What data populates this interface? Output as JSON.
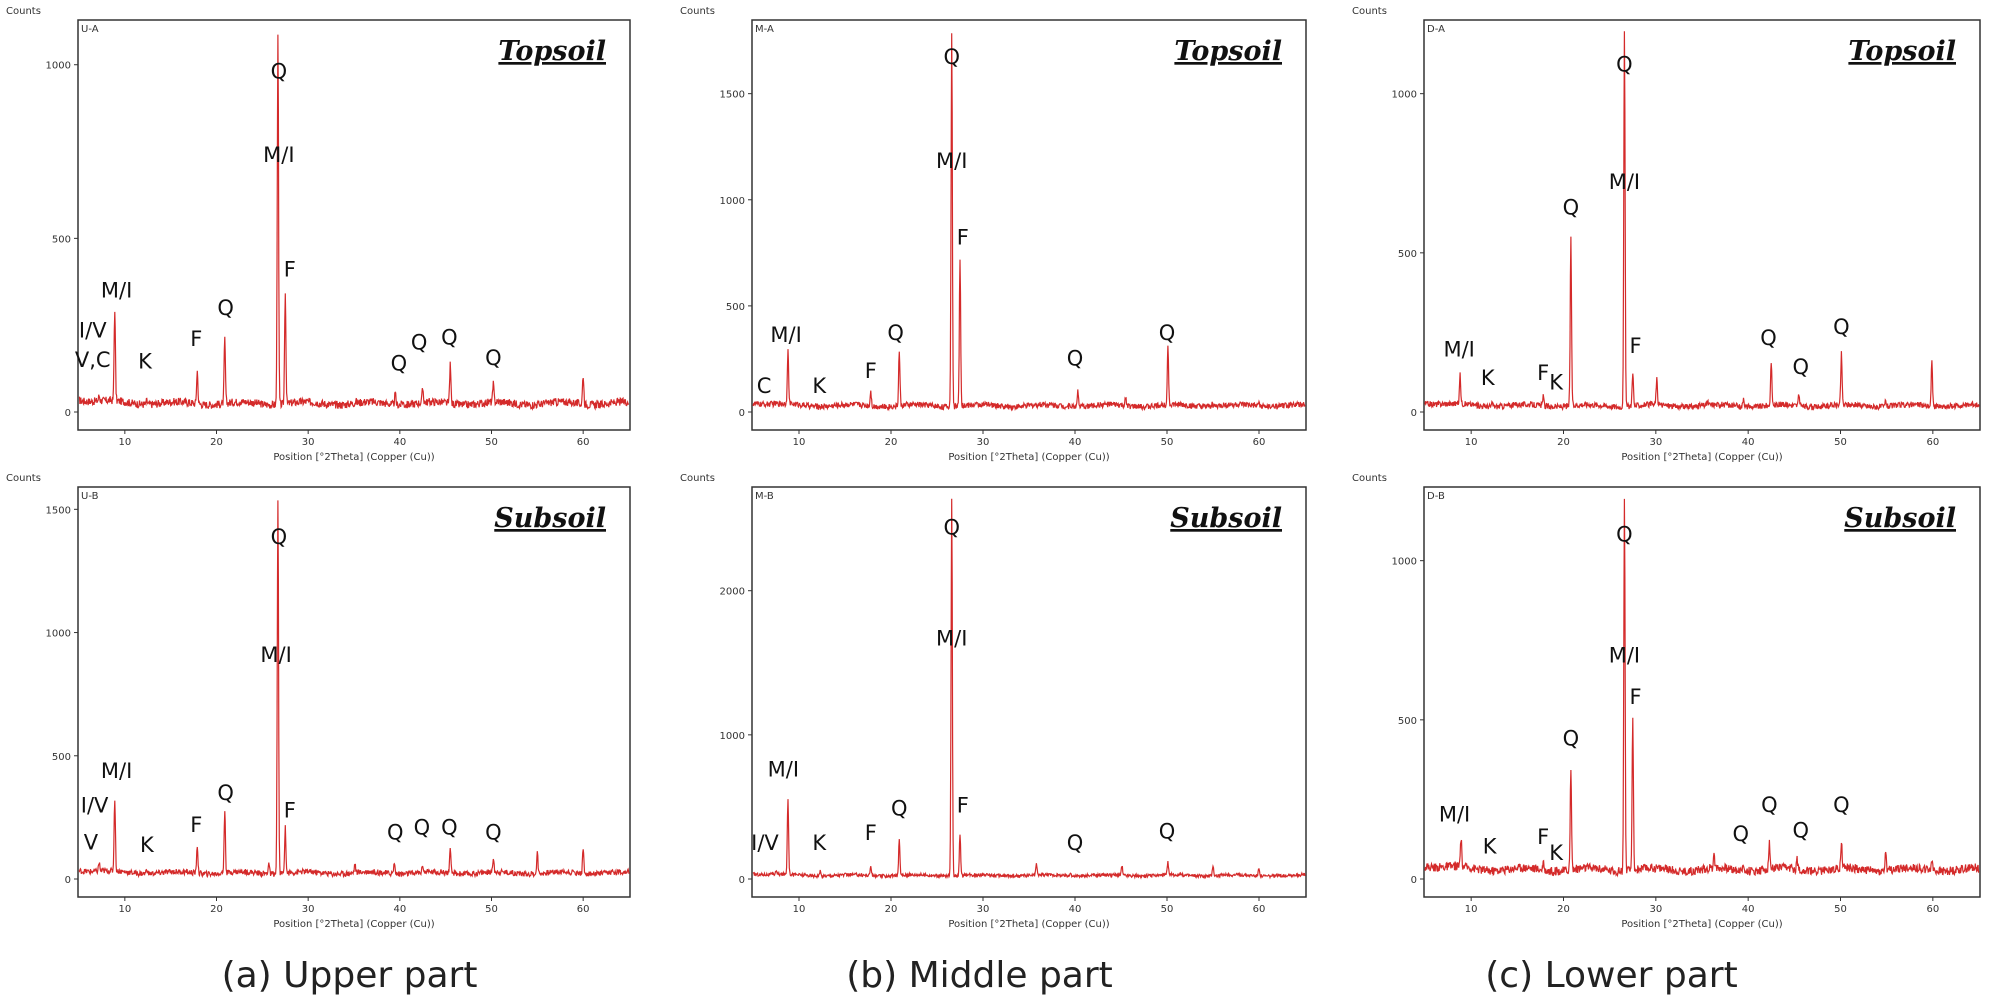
{
  "figure": {
    "x_axis_label": "Position [°2Theta] (Copper (Cu))",
    "y_axis_label": "Counts",
    "captions": [
      "(a) Upper part",
      "(b) Middle part",
      "(c) Lower part"
    ]
  },
  "colors": {
    "trace": "#d42a2a",
    "frame": "#333333",
    "text": "#111111"
  },
  "chart_data": [
    {
      "type": "line",
      "sample_id": "U-A",
      "title": "Topsoil",
      "x_range": [
        5,
        65
      ],
      "ylim": [
        0,
        1100
      ],
      "xticks": [
        10,
        20,
        30,
        40,
        50,
        60
      ],
      "yticks": [
        0,
        500,
        1000
      ],
      "baseline": 25,
      "peaks": [
        [
          7.2,
          40
        ],
        [
          8.9,
          290
        ],
        [
          12.4,
          35
        ],
        [
          17.9,
          120
        ],
        [
          20.9,
          210
        ],
        [
          26.7,
          1100
        ],
        [
          27.5,
          350
        ],
        [
          35.2,
          30
        ],
        [
          39.5,
          55
        ],
        [
          40.3,
          35
        ],
        [
          42.5,
          65
        ],
        [
          45.5,
          135
        ],
        [
          50.2,
          75
        ],
        [
          54.9,
          25
        ],
        [
          60.0,
          110
        ]
      ],
      "annotations": [
        {
          "text": "I/V",
          "x": 6.5,
          "y": 215
        },
        {
          "text": "V,C",
          "x": 6.5,
          "y": 130
        },
        {
          "text": "M/I",
          "x": 9.1,
          "y": 330
        },
        {
          "text": "K",
          "x": 12.2,
          "y": 125
        },
        {
          "text": "F",
          "x": 17.8,
          "y": 190
        },
        {
          "text": "Q",
          "x": 21.0,
          "y": 280
        },
        {
          "text": "Q",
          "x": 26.8,
          "y": 960
        },
        {
          "text": "M/I",
          "x": 26.8,
          "y": 720
        },
        {
          "text": "F",
          "x": 28.0,
          "y": 390
        },
        {
          "text": "Q",
          "x": 39.9,
          "y": 120
        },
        {
          "text": "Q",
          "x": 42.1,
          "y": 180
        },
        {
          "text": "Q",
          "x": 45.4,
          "y": 195
        },
        {
          "text": "Q",
          "x": 50.2,
          "y": 135
        }
      ]
    },
    {
      "type": "line",
      "sample_id": "M-A",
      "title": "Topsoil",
      "x_range": [
        5,
        65
      ],
      "ylim": [
        0,
        1800
      ],
      "xticks": [
        10,
        20,
        30,
        40,
        50,
        60
      ],
      "yticks": [
        0,
        500,
        1000,
        1500
      ],
      "baseline": 30,
      "peaks": [
        [
          8.8,
          280
        ],
        [
          12.3,
          30
        ],
        [
          17.8,
          100
        ],
        [
          20.9,
          290
        ],
        [
          26.6,
          1800
        ],
        [
          27.5,
          730
        ],
        [
          36.6,
          40
        ],
        [
          39.5,
          40
        ],
        [
          40.3,
          105
        ],
        [
          45.5,
          60
        ],
        [
          50.1,
          310
        ],
        [
          54.9,
          45
        ],
        [
          60.0,
          50
        ]
      ],
      "annotations": [
        {
          "text": "C",
          "x": 6.2,
          "y": 90
        },
        {
          "text": "M/I",
          "x": 8.6,
          "y": 330
        },
        {
          "text": "K",
          "x": 12.2,
          "y": 90
        },
        {
          "text": "F",
          "x": 17.8,
          "y": 160
        },
        {
          "text": "Q",
          "x": 20.5,
          "y": 340
        },
        {
          "text": "Q",
          "x": 26.6,
          "y": 1640
        },
        {
          "text": "M/I",
          "x": 26.6,
          "y": 1150
        },
        {
          "text": "F",
          "x": 27.8,
          "y": 790
        },
        {
          "text": "Q",
          "x": 40.0,
          "y": 220
        },
        {
          "text": "Q",
          "x": 50.0,
          "y": 340
        }
      ]
    },
    {
      "type": "line",
      "sample_id": "D-A",
      "title": "Topsoil",
      "x_range": [
        5,
        65
      ],
      "ylim": [
        0,
        1200
      ],
      "xticks": [
        10,
        20,
        30,
        40,
        50,
        60
      ],
      "yticks": [
        0,
        500,
        1000
      ],
      "baseline": 20,
      "peaks": [
        [
          8.8,
          110
        ],
        [
          12.3,
          30
        ],
        [
          17.8,
          50
        ],
        [
          20.8,
          550
        ],
        [
          26.6,
          1200
        ],
        [
          27.5,
          130
        ],
        [
          30.1,
          100
        ],
        [
          35.6,
          30
        ],
        [
          39.5,
          50
        ],
        [
          42.5,
          150
        ],
        [
          45.5,
          55
        ],
        [
          50.1,
          180
        ],
        [
          54.9,
          40
        ],
        [
          59.9,
          160
        ]
      ],
      "annotations": [
        {
          "text": "M/I",
          "x": 8.7,
          "y": 175
        },
        {
          "text": "K",
          "x": 11.8,
          "y": 85
        },
        {
          "text": "F",
          "x": 17.8,
          "y": 100
        },
        {
          "text": "K",
          "x": 19.2,
          "y": 70
        },
        {
          "text": "Q",
          "x": 20.8,
          "y": 620
        },
        {
          "text": "Q",
          "x": 26.6,
          "y": 1070
        },
        {
          "text": "M/I",
          "x": 26.6,
          "y": 700
        },
        {
          "text": "F",
          "x": 27.8,
          "y": 185
        },
        {
          "text": "Q",
          "x": 42.2,
          "y": 210
        },
        {
          "text": "Q",
          "x": 45.7,
          "y": 120
        },
        {
          "text": "Q",
          "x": 50.1,
          "y": 245
        }
      ]
    },
    {
      "type": "line",
      "sample_id": "U-B",
      "title": "Subsoil",
      "x_range": [
        5,
        65
      ],
      "ylim": [
        0,
        1550
      ],
      "xticks": [
        10,
        20,
        30,
        40,
        50,
        60
      ],
      "yticks": [
        0,
        500,
        1000,
        1500
      ],
      "baseline": 25,
      "peaks": [
        [
          7.2,
          60
        ],
        [
          8.9,
          320
        ],
        [
          12.4,
          45
        ],
        [
          17.9,
          140
        ],
        [
          20.9,
          280
        ],
        [
          25.7,
          70
        ],
        [
          26.7,
          1550
        ],
        [
          27.5,
          210
        ],
        [
          35.1,
          60
        ],
        [
          39.4,
          70
        ],
        [
          42.5,
          55
        ],
        [
          45.5,
          115
        ],
        [
          50.2,
          80
        ],
        [
          55.0,
          110
        ],
        [
          60.0,
          120
        ]
      ],
      "annotations": [
        {
          "text": "I/V",
          "x": 6.7,
          "y": 270
        },
        {
          "text": "V",
          "x": 6.3,
          "y": 120
        },
        {
          "text": "M/I",
          "x": 9.1,
          "y": 410
        },
        {
          "text": "K",
          "x": 12.4,
          "y": 110
        },
        {
          "text": "F",
          "x": 17.8,
          "y": 190
        },
        {
          "text": "Q",
          "x": 21.0,
          "y": 320
        },
        {
          "text": "Q",
          "x": 26.8,
          "y": 1360
        },
        {
          "text": "M/I",
          "x": 26.5,
          "y": 880
        },
        {
          "text": "F",
          "x": 28.0,
          "y": 250
        },
        {
          "text": "Q",
          "x": 39.5,
          "y": 160
        },
        {
          "text": "Q",
          "x": 42.4,
          "y": 180
        },
        {
          "text": "Q",
          "x": 45.4,
          "y": 180
        },
        {
          "text": "Q",
          "x": 50.2,
          "y": 160
        }
      ]
    },
    {
      "type": "line",
      "sample_id": "M-B",
      "title": "Subsoil",
      "x_range": [
        5,
        65
      ],
      "ylim": [
        0,
        2650
      ],
      "xticks": [
        10,
        20,
        30,
        40,
        50,
        60
      ],
      "yticks": [
        0,
        1000,
        2000
      ],
      "baseline": 25,
      "peaks": [
        [
          7.5,
          50
        ],
        [
          8.8,
          550
        ],
        [
          12.3,
          55
        ],
        [
          17.8,
          90
        ],
        [
          20.9,
          270
        ],
        [
          26.6,
          2650
        ],
        [
          27.5,
          300
        ],
        [
          35.8,
          100
        ],
        [
          39.5,
          55
        ],
        [
          45.1,
          90
        ],
        [
          50.1,
          110
        ],
        [
          55.0,
          100
        ],
        [
          60.0,
          80
        ]
      ],
      "annotations": [
        {
          "text": "I/V",
          "x": 6.3,
          "y": 200
        },
        {
          "text": "M/I",
          "x": 8.3,
          "y": 710
        },
        {
          "text": "K",
          "x": 12.2,
          "y": 200
        },
        {
          "text": "F",
          "x": 17.8,
          "y": 270
        },
        {
          "text": "Q",
          "x": 20.9,
          "y": 440
        },
        {
          "text": "Q",
          "x": 26.6,
          "y": 2390
        },
        {
          "text": "M/I",
          "x": 26.6,
          "y": 1620
        },
        {
          "text": "F",
          "x": 27.8,
          "y": 460
        },
        {
          "text": "Q",
          "x": 40.0,
          "y": 200
        },
        {
          "text": "Q",
          "x": 50.0,
          "y": 280
        }
      ]
    },
    {
      "type": "line",
      "sample_id": "D-B",
      "title": "Subsoil",
      "x_range": [
        5,
        65
      ],
      "ylim": [
        0,
        1200
      ],
      "xticks": [
        10,
        20,
        30,
        40,
        50,
        60
      ],
      "yticks": [
        0,
        500,
        1000
      ],
      "baseline": 30,
      "peaks": [
        [
          8.9,
          120
        ],
        [
          12.4,
          30
        ],
        [
          17.8,
          50
        ],
        [
          20.8,
          350
        ],
        [
          26.6,
          1200
        ],
        [
          27.5,
          500
        ],
        [
          36.3,
          80
        ],
        [
          39.5,
          50
        ],
        [
          42.3,
          110
        ],
        [
          45.3,
          60
        ],
        [
          50.1,
          110
        ],
        [
          54.9,
          90
        ],
        [
          59.9,
          70
        ]
      ],
      "annotations": [
        {
          "text": "M/I",
          "x": 8.2,
          "y": 180
        },
        {
          "text": "K",
          "x": 12.0,
          "y": 80
        },
        {
          "text": "F",
          "x": 17.8,
          "y": 110
        },
        {
          "text": "K",
          "x": 19.2,
          "y": 60
        },
        {
          "text": "Q",
          "x": 20.8,
          "y": 420
        },
        {
          "text": "Q",
          "x": 26.6,
          "y": 1060
        },
        {
          "text": "M/I",
          "x": 26.6,
          "y": 680
        },
        {
          "text": "F",
          "x": 27.8,
          "y": 550
        },
        {
          "text": "Q",
          "x": 39.2,
          "y": 120
        },
        {
          "text": "Q",
          "x": 42.3,
          "y": 210
        },
        {
          "text": "Q",
          "x": 45.7,
          "y": 130
        },
        {
          "text": "Q",
          "x": 50.1,
          "y": 210
        }
      ]
    }
  ]
}
